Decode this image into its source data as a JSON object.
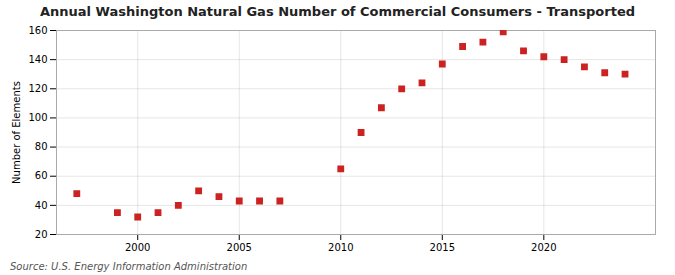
{
  "chart_data": {
    "type": "scatter",
    "title": "Annual Washington Natural Gas Number of Commercial Consumers - Transported",
    "ylabel": "Number of Elements",
    "source": "Source: U.S. Energy Information Administration",
    "x": [
      1997,
      1999,
      2000,
      2001,
      2002,
      2003,
      2004,
      2005,
      2006,
      2007,
      2010,
      2011,
      2012,
      2013,
      2014,
      2015,
      2016,
      2017,
      2018,
      2019,
      2020,
      2021,
      2022,
      2023,
      2024
    ],
    "values": [
      48,
      35,
      32,
      35,
      40,
      50,
      46,
      43,
      43,
      43,
      65,
      90,
      107,
      120,
      124,
      137,
      149,
      152,
      159,
      146,
      142,
      140,
      135,
      131,
      130
    ],
    "color": "#cc2222",
    "marker": "square",
    "xlim": [
      1996,
      2025.5
    ],
    "xticks": [
      2000,
      2005,
      2010,
      2015,
      2020
    ],
    "ylim": [
      20,
      160
    ],
    "yticks": [
      20,
      40,
      60,
      80,
      100,
      120,
      140,
      160
    ],
    "grid": true
  }
}
